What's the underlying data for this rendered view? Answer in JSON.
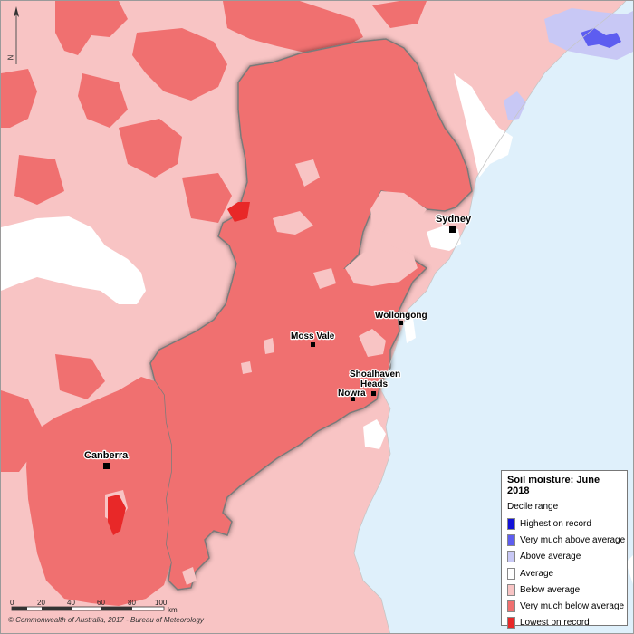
{
  "legend": {
    "title": "Soil moisture: June 2018",
    "subtitle": "Decile range",
    "items": [
      {
        "label": "Highest on record",
        "color": "#1212d8"
      },
      {
        "label": "Very much above average",
        "color": "#5d5df0"
      },
      {
        "label": "Above average",
        "color": "#c8c8f5"
      },
      {
        "label": "Average",
        "color": "#ffffff"
      },
      {
        "label": "Below average",
        "color": "#f8c4c4"
      },
      {
        "label": "Very much below average",
        "color": "#f07070"
      },
      {
        "label": "Lowest on record",
        "color": "#e82828"
      }
    ]
  },
  "places": {
    "sydney": "Sydney",
    "wollongong": "Wollongong",
    "moss_vale": "Moss Vale",
    "shoalhaven_1": "Shoalhaven",
    "shoalhaven_2": "Heads",
    "nowra": "Nowra",
    "canberra": "Canberra"
  },
  "scale": {
    "ticks": [
      "0",
      "20",
      "40",
      "60",
      "80",
      "100"
    ],
    "unit": "km"
  },
  "north_label": "N",
  "copyright": "© Commonwealth of Australia, 2017 - Bureau of Meteorology",
  "colors": {
    "ocean": "#dff0fb",
    "below_average": "#f8c4c4",
    "very_much_below": "#f07070",
    "lowest": "#e82828",
    "above_average": "#c8c8f5",
    "very_much_above": "#5d5df0"
  }
}
